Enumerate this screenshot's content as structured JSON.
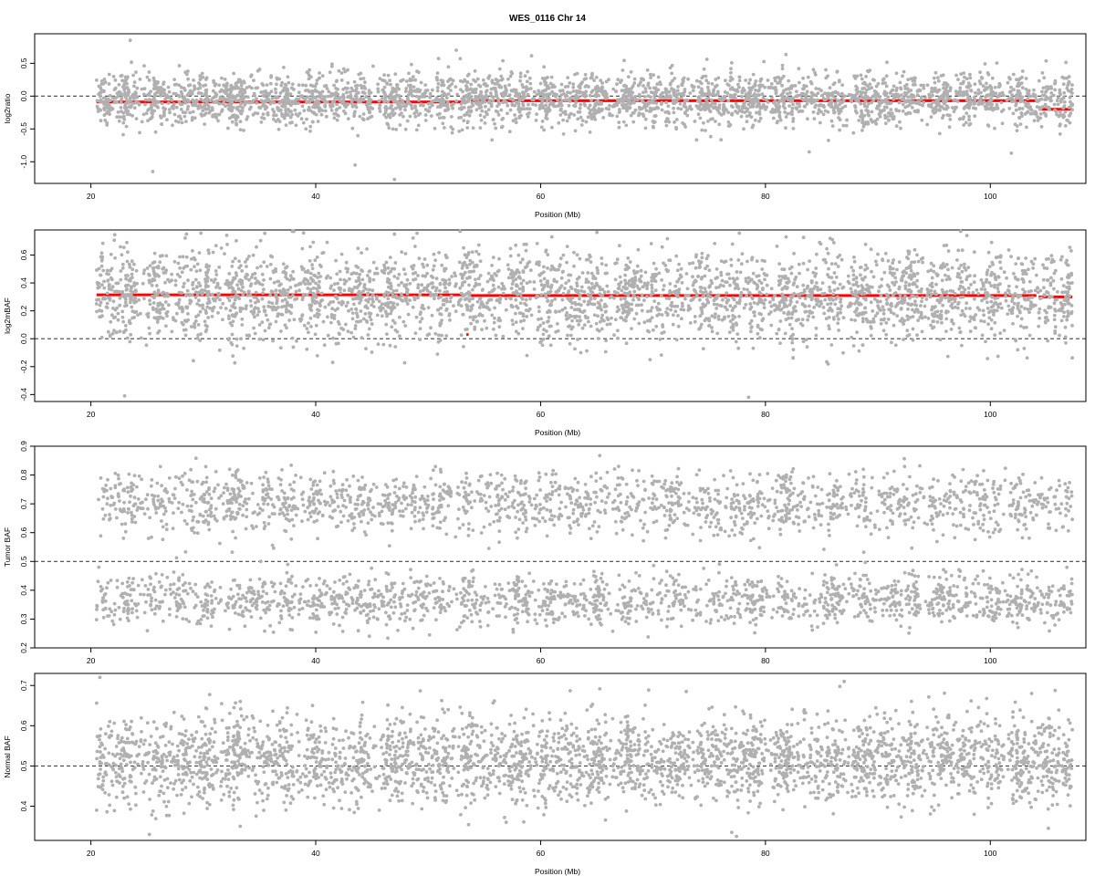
{
  "figure": {
    "title": "WES_0116 Chr 14"
  },
  "chart_data": [
    {
      "type": "scatter",
      "ylabel": "log2ratio",
      "xlabel": "Position (Mb)",
      "xlim": [
        15,
        108.5
      ],
      "ylim": [
        -1.33,
        0.95
      ],
      "xticks": [
        20,
        40,
        60,
        80,
        100
      ],
      "yticks": [
        -1.0,
        -0.5,
        0.0,
        0.5
      ],
      "ytick_labels": [
        "-1.0",
        "-0.5",
        "0.0",
        "0.5"
      ],
      "reference_line": {
        "y": 0,
        "style": "dashed"
      },
      "point_color": "#b0b0b0",
      "segment_color": "#ff0000",
      "point_cloud": {
        "x_range": [
          20.5,
          107.3
        ],
        "center": -0.05,
        "spread": 0.2
      },
      "segments": [
        {
          "x_start": 20.5,
          "x_end": 53.4,
          "y": -0.09
        },
        {
          "x_start": 53.4,
          "x_end": 53.6,
          "y": -0.4
        },
        {
          "x_start": 53.8,
          "x_end": 104.1,
          "y": -0.07
        },
        {
          "x_start": 104.3,
          "x_end": 107.3,
          "y": -0.2
        }
      ],
      "outliers": [
        {
          "x": 23.5,
          "y": 0.85
        },
        {
          "x": 52.5,
          "y": 0.7
        },
        {
          "x": 25.5,
          "y": -1.15
        },
        {
          "x": 47.0,
          "y": -1.27
        },
        {
          "x": 43.5,
          "y": -1.05
        }
      ]
    },
    {
      "type": "scatter",
      "ylabel": "log2mBAF",
      "xlabel": "Position (Mb)",
      "xlim": [
        15,
        108.5
      ],
      "ylim": [
        -0.45,
        0.78
      ],
      "xticks": [
        20,
        40,
        60,
        80,
        100
      ],
      "yticks": [
        -0.4,
        -0.2,
        0.0,
        0.2,
        0.4,
        0.6
      ],
      "ytick_labels": [
        "-0.4",
        "-0.2",
        "0.0",
        "0.2",
        "0.4",
        "0.6"
      ],
      "reference_line": {
        "y": 0,
        "style": "dashed"
      },
      "point_color": "#b0b0b0",
      "segment_color": "#ff0000",
      "point_cloud": {
        "x_range": [
          20.5,
          107.3
        ],
        "center": 0.31,
        "spread": 0.16
      },
      "segments": [
        {
          "x_start": 20.5,
          "x_end": 53.4,
          "y": 0.315
        },
        {
          "x_start": 53.4,
          "x_end": 53.6,
          "y": 0.03
        },
        {
          "x_start": 53.8,
          "x_end": 104.1,
          "y": 0.31
        },
        {
          "x_start": 104.3,
          "x_end": 107.3,
          "y": 0.3
        }
      ],
      "outliers": [
        {
          "x": 28.5,
          "y": 0.75
        },
        {
          "x": 47.0,
          "y": 0.75
        },
        {
          "x": 61.0,
          "y": 0.73
        },
        {
          "x": 78.5,
          "y": -0.42
        },
        {
          "x": 23.0,
          "y": -0.41
        }
      ]
    },
    {
      "type": "scatter",
      "ylabel": "Tumor BAF",
      "xlabel": "",
      "xlim": [
        15,
        108.5
      ],
      "ylim": [
        0.2,
        0.9
      ],
      "xticks": [
        20,
        40,
        60,
        80,
        100
      ],
      "yticks": [
        0.2,
        0.3,
        0.4,
        0.5,
        0.6,
        0.7,
        0.8,
        0.9
      ],
      "ytick_labels": [
        "0.2",
        "0.3",
        "0.4",
        "0.5",
        "0.6",
        "0.7",
        "0.8",
        "0.9"
      ],
      "reference_line": {
        "y": 0.5,
        "style": "dashed"
      },
      "point_color": "#b0b0b0",
      "bands": [
        {
          "center": 0.705,
          "spread": 0.055
        },
        {
          "center": 0.365,
          "spread": 0.045
        }
      ],
      "point_cloud": {
        "x_range": [
          20.5,
          107.3
        ]
      }
    },
    {
      "type": "scatter",
      "ylabel": "Normal BAF",
      "xlabel": "Position (Mb)",
      "xlim": [
        15,
        108.5
      ],
      "ylim": [
        0.315,
        0.73
      ],
      "xticks": [
        20,
        40,
        60,
        80,
        100
      ],
      "yticks": [
        0.4,
        0.5,
        0.6,
        0.7
      ],
      "ytick_labels": [
        "0.4",
        "0.5",
        "0.6",
        "0.7"
      ],
      "reference_line": {
        "y": 0.5,
        "style": "dashed"
      },
      "point_color": "#b0b0b0",
      "point_cloud": {
        "x_range": [
          20.5,
          107.3
        ],
        "center": 0.515,
        "spread": 0.055
      },
      "outliers": [
        {
          "x": 20.8,
          "y": 0.72
        },
        {
          "x": 25.2,
          "y": 0.33
        },
        {
          "x": 77.0,
          "y": 0.335
        },
        {
          "x": 87.0,
          "y": 0.71
        }
      ]
    }
  ]
}
